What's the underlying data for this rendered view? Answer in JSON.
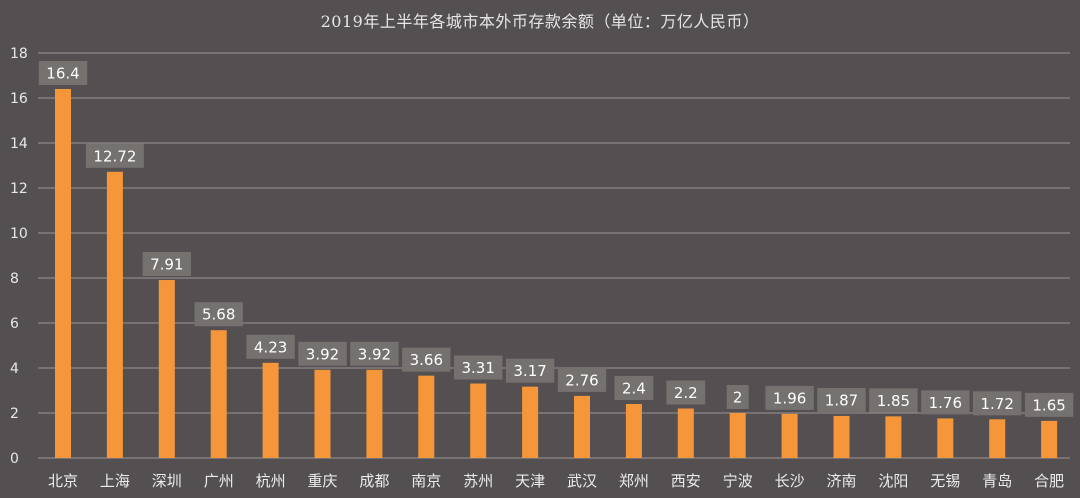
{
  "chart_data": {
    "type": "bar",
    "title": "2019年上半年各城市本外币存款余额（单位：万亿人民币）",
    "xlabel": "",
    "ylabel": "",
    "ylim": [
      0,
      18
    ],
    "yticks": [
      "0",
      "2",
      "4",
      "6",
      "8",
      "10",
      "12",
      "14",
      "16",
      "18"
    ],
    "grid": true,
    "legend": "none",
    "categories": [
      "北京",
      "上海",
      "深圳",
      "广州",
      "杭州",
      "重庆",
      "成都",
      "南京",
      "苏州",
      "天津",
      "武汉",
      "郑州",
      "西安",
      "宁波",
      "长沙",
      "济南",
      "沈阳",
      "无锡",
      "青岛",
      "合肥"
    ],
    "values": [
      16.4,
      12.72,
      7.91,
      5.68,
      4.23,
      3.92,
      3.92,
      3.66,
      3.31,
      3.17,
      2.76,
      2.4,
      2.2,
      2,
      1.96,
      1.87,
      1.85,
      1.76,
      1.72,
      1.65
    ],
    "data_labels": [
      "16.4",
      "12.72",
      "7.91",
      "5.68",
      "4.23",
      "3.92",
      "3.92",
      "3.66",
      "3.31",
      "3.17",
      "2.76",
      "2.4",
      "2.2",
      "2",
      "1.96",
      "1.87",
      "1.85",
      "1.76",
      "1.72",
      "1.65"
    ],
    "colors": {
      "bar": "#f5963a",
      "background": "#545052",
      "grid": "#9a9698",
      "label_box": "#75716f"
    }
  }
}
